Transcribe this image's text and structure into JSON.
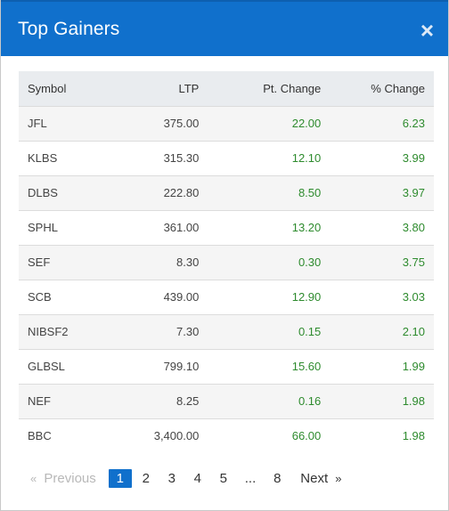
{
  "modal": {
    "title": "Top Gainers",
    "close_glyph": "×"
  },
  "table": {
    "headers": {
      "symbol": "Symbol",
      "ltp": "LTP",
      "pt_change": "Pt. Change",
      "pct_change": "% Change"
    },
    "rows": [
      {
        "symbol": "JFL",
        "ltp": "375.00",
        "pt_change": "22.00",
        "pct_change": "6.23"
      },
      {
        "symbol": "KLBS",
        "ltp": "315.30",
        "pt_change": "12.10",
        "pct_change": "3.99"
      },
      {
        "symbol": "DLBS",
        "ltp": "222.80",
        "pt_change": "8.50",
        "pct_change": "3.97"
      },
      {
        "symbol": "SPHL",
        "ltp": "361.00",
        "pt_change": "13.20",
        "pct_change": "3.80"
      },
      {
        "symbol": "SEF",
        "ltp": "8.30",
        "pt_change": "0.30",
        "pct_change": "3.75"
      },
      {
        "symbol": "SCB",
        "ltp": "439.00",
        "pt_change": "12.90",
        "pct_change": "3.03"
      },
      {
        "symbol": "NIBSF2",
        "ltp": "7.30",
        "pt_change": "0.15",
        "pct_change": "2.10"
      },
      {
        "symbol": "GLBSL",
        "ltp": "799.10",
        "pt_change": "15.60",
        "pct_change": "1.99"
      },
      {
        "symbol": "NEF",
        "ltp": "8.25",
        "pt_change": "0.16",
        "pct_change": "1.98"
      },
      {
        "symbol": "BBC",
        "ltp": "3,400.00",
        "pt_change": "66.00",
        "pct_change": "1.98"
      }
    ]
  },
  "pagination": {
    "prev_arrow": "«",
    "prev_label": "Previous",
    "pages": [
      "1",
      "2",
      "3",
      "4",
      "5"
    ],
    "ellipsis": "...",
    "last_page": "8",
    "next_label": "Next",
    "next_arrow": "»",
    "current_page": "1"
  },
  "colors": {
    "header_bg": "#1070cc",
    "positive": "#2e8b2e",
    "active_page": "#1070cc"
  }
}
